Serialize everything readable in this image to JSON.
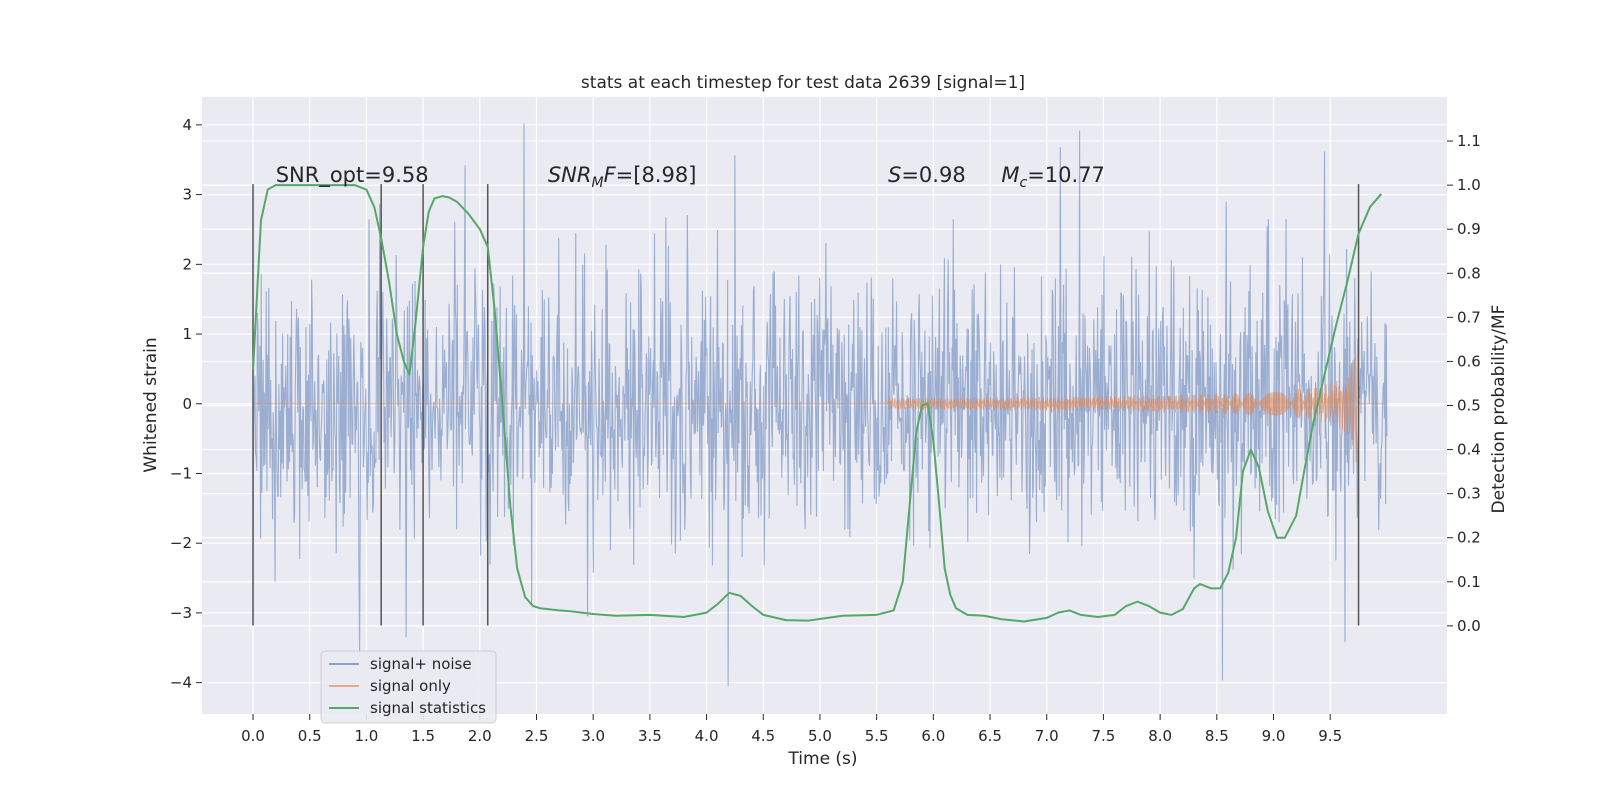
{
  "chart_data": {
    "type": "line",
    "title": "stats at each timestep for test data 2639 [signal=1]",
    "xlabel": "Time (s)",
    "ylabel": "Whitened strain",
    "y2label": "Detection probability/MF",
    "xlim": [
      -0.45,
      10.53
    ],
    "ylim": [
      -4.45,
      4.4
    ],
    "y2lim": [
      -0.2,
      1.2
    ],
    "xticks": [
      "0.0",
      "0.5",
      "1.0",
      "1.5",
      "2.0",
      "2.5",
      "3.0",
      "3.5",
      "4.0",
      "4.5",
      "5.0",
      "5.5",
      "6.0",
      "6.5",
      "7.0",
      "7.5",
      "8.0",
      "8.5",
      "9.0",
      "9.5"
    ],
    "yticks": [
      "4",
      "3",
      "2",
      "1",
      "0",
      "−1",
      "−2",
      "−3",
      "−4"
    ],
    "y2ticks": [
      "1.1",
      "1.0",
      "0.9",
      "0.8",
      "0.7",
      "0.6",
      "0.5",
      "0.4",
      "0.3",
      "0.2",
      "0.1",
      "0.0"
    ],
    "grid": true,
    "legend_position": "lower-left",
    "annotations": [
      {
        "prefix": "SNR_opt",
        "value": "9.58",
        "x": 0.2,
        "y": 3.18
      },
      {
        "prefix": "SNR",
        "sub": "M",
        "suffix": "F",
        "value": "[8.98]",
        "x": 2.6,
        "y": 3.18
      },
      {
        "prefix": "S",
        "value": "0.98",
        "x": 5.6,
        "y": 3.18
      },
      {
        "prefix": "M",
        "sub": "c",
        "value": "10.77",
        "x": 6.6,
        "y": 3.18
      }
    ],
    "vlines": [
      0.0,
      1.13,
      1.5,
      2.07,
      9.75
    ],
    "vline_range": [
      -3.18,
      3.15
    ],
    "series": [
      {
        "name": "signal+ noise",
        "color": "#4c72b0",
        "kind": "noise",
        "x_range": [
          0.0,
          10.0
        ],
        "sigma": 0.95,
        "peaks": [
          {
            "x": 2.39,
            "y": 4.02
          },
          {
            "x": 7.29,
            "y": 3.92
          },
          {
            "x": 7.12,
            "y": 3.68
          },
          {
            "x": 4.25,
            "y": 3.56
          },
          {
            "x": 9.45,
            "y": 3.62
          },
          {
            "x": 1.87,
            "y": 3.42
          },
          {
            "x": 4.19,
            "y": -4.05
          },
          {
            "x": 8.55,
            "y": -3.97
          },
          {
            "x": 0.94,
            "y": -3.62
          },
          {
            "x": 1.35,
            "y": -3.35
          },
          {
            "x": 9.63,
            "y": -3.42
          },
          {
            "x": 2.95,
            "y": -3.05
          }
        ]
      },
      {
        "name": "signal only",
        "color": "#dd8452",
        "kind": "chirp",
        "x_range": [
          0.0,
          10.0
        ],
        "start": 5.6,
        "merger": 9.75,
        "amp_at_start": 0.02,
        "amp_at_merger": 0.93
      },
      {
        "name": "signal statistics",
        "color": "#55a868",
        "kind": "line",
        "axis": "right",
        "x": [
          0.0,
          0.07,
          0.13,
          0.2,
          0.3,
          0.45,
          0.6,
          0.75,
          0.9,
          1.0,
          1.07,
          1.13,
          1.2,
          1.27,
          1.33,
          1.38,
          1.43,
          1.5,
          1.55,
          1.6,
          1.67,
          1.73,
          1.8,
          1.9,
          2.0,
          2.07,
          2.13,
          2.2,
          2.27,
          2.33,
          2.4,
          2.47,
          2.53,
          2.6,
          2.7,
          2.8,
          3.0,
          3.2,
          3.5,
          3.8,
          4.0,
          4.1,
          4.2,
          4.3,
          4.4,
          4.5,
          4.7,
          4.9,
          5.2,
          5.5,
          5.65,
          5.73,
          5.8,
          5.85,
          5.9,
          5.95,
          6.0,
          6.05,
          6.1,
          6.15,
          6.2,
          6.3,
          6.45,
          6.6,
          6.8,
          7.0,
          7.1,
          7.2,
          7.3,
          7.45,
          7.6,
          7.7,
          7.8,
          7.9,
          8.0,
          8.1,
          8.2,
          8.3,
          8.35,
          8.45,
          8.53,
          8.6,
          8.67,
          8.73,
          8.8,
          8.87,
          8.95,
          9.03,
          9.1,
          9.2,
          9.27,
          9.35,
          9.45,
          9.55,
          9.65,
          9.75,
          9.85,
          9.95
        ],
        "y": [
          0.58,
          0.92,
          0.99,
          1.0,
          1.0,
          1.0,
          1.0,
          1.0,
          1.0,
          0.99,
          0.95,
          0.88,
          0.78,
          0.66,
          0.6,
          0.57,
          0.68,
          0.86,
          0.94,
          0.97,
          0.975,
          0.972,
          0.962,
          0.935,
          0.9,
          0.86,
          0.72,
          0.5,
          0.27,
          0.13,
          0.065,
          0.045,
          0.04,
          0.038,
          0.035,
          0.033,
          0.027,
          0.023,
          0.025,
          0.02,
          0.03,
          0.05,
          0.075,
          0.068,
          0.045,
          0.025,
          0.013,
          0.012,
          0.023,
          0.025,
          0.035,
          0.1,
          0.3,
          0.44,
          0.5,
          0.505,
          0.42,
          0.28,
          0.13,
          0.07,
          0.04,
          0.025,
          0.023,
          0.015,
          0.01,
          0.018,
          0.03,
          0.035,
          0.025,
          0.02,
          0.025,
          0.045,
          0.055,
          0.045,
          0.03,
          0.025,
          0.038,
          0.085,
          0.095,
          0.085,
          0.085,
          0.12,
          0.2,
          0.35,
          0.4,
          0.36,
          0.26,
          0.2,
          0.2,
          0.25,
          0.35,
          0.46,
          0.57,
          0.68,
          0.78,
          0.89,
          0.95,
          0.98
        ]
      }
    ]
  }
}
